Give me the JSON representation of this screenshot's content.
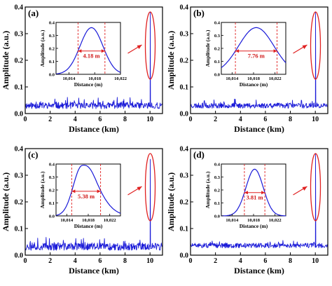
{
  "colors": {
    "trace": "#1a1ad8",
    "marker": "#e02020",
    "axis": "#000000"
  },
  "chart_data": [
    {
      "type": "line",
      "label": "(a)",
      "xlabel": "Distance (km)",
      "ylabel": "Amplitude (a.u.)",
      "xlim": [
        0,
        11
      ],
      "ylim": [
        0,
        0.4
      ],
      "xticks": [
        "0",
        "2",
        "4",
        "6",
        "8",
        "10"
      ],
      "yticks": [
        "0.0",
        "0.1",
        "0.2",
        "0.3",
        "0.4"
      ],
      "noise_level": 0.03,
      "noise_spread": 0.012,
      "peak_position_km": 10.018,
      "peak_amplitude": 0.38,
      "inset": {
        "xlabel": "Distance (m)",
        "ylabel": "Amplitude (a.u.)",
        "xlim": [
          10012,
          10022
        ],
        "ylim": [
          0,
          0.4
        ],
        "xticks": [
          "10,014",
          "10,018",
          "10,022"
        ],
        "yticks": [
          "0.0",
          "0.1",
          "0.2",
          "0.3",
          "0.4"
        ],
        "peak_center_m": 10017.5,
        "peak_amplitude": 0.36,
        "shape": "symmetric",
        "fwhm_m": 4.18,
        "fwhm_label": "4.18 m"
      }
    },
    {
      "type": "line",
      "label": "(b)",
      "xlabel": "Distance (km)",
      "ylabel": "Amplitude (a.u.)",
      "xlim": [
        0,
        11
      ],
      "ylim": [
        0,
        0.4
      ],
      "xticks": [
        "0",
        "2",
        "4",
        "6",
        "8",
        "10"
      ],
      "yticks": [
        "0.0",
        "0.1",
        "0.2",
        "0.3",
        "0.4"
      ],
      "noise_level": 0.03,
      "noise_spread": 0.01,
      "peak_position_km": 10.018,
      "peak_amplitude": 0.38,
      "inset": {
        "xlabel": "Distance (m)",
        "ylabel": "Amplitude (a.u.)",
        "xlim": [
          10012,
          10024
        ],
        "ylim": [
          0,
          0.4
        ],
        "xticks": [
          "10,014",
          "10,018",
          "10,022"
        ],
        "yticks": [
          "0.0",
          "0.1",
          "0.2",
          "0.3",
          "0.4"
        ],
        "peak_center_m": 10018.5,
        "peak_amplitude": 0.36,
        "shape": "symmetric",
        "fwhm_m": 7.76,
        "fwhm_label": "7.76 m"
      }
    },
    {
      "type": "line",
      "label": "(c)",
      "xlabel": "Distance (km)",
      "ylabel": "Amplitude (a.u.)",
      "xlim": [
        0,
        11
      ],
      "ylim": [
        0,
        0.4
      ],
      "xticks": [
        "0",
        "2",
        "4",
        "6",
        "8",
        "10"
      ],
      "yticks": [
        "0.0",
        "0.1",
        "0.2",
        "0.3",
        "0.4"
      ],
      "noise_level": 0.032,
      "noise_spread": 0.014,
      "peak_position_km": 10.018,
      "peak_amplitude": 0.36,
      "inset": {
        "xlabel": "Distance (m)",
        "ylabel": "Amplitude (a.u.)",
        "xlim": [
          10012,
          10024
        ],
        "ylim": [
          0,
          0.4
        ],
        "xticks": [
          "10,014",
          "10,018",
          "10,022"
        ],
        "yticks": [
          "0.0",
          "0.1",
          "0.2",
          "0.3",
          "0.4"
        ],
        "peak_center_m": 10016.8,
        "peak_amplitude": 0.38,
        "shape": "skewed",
        "fwhm_m": 5.38,
        "fwhm_label": "5.38 m"
      }
    },
    {
      "type": "line",
      "label": "(d)",
      "xlabel": "Distance (km)",
      "ylabel": "Amplitude (a.u.)",
      "xlim": [
        0,
        11
      ],
      "ylim": [
        0,
        0.4
      ],
      "xticks": [
        "0",
        "2",
        "4",
        "6",
        "8",
        "10"
      ],
      "yticks": [
        "0.0",
        "0.1",
        "0.2",
        "0.3",
        "0.4"
      ],
      "noise_level": 0.036,
      "noise_spread": 0.009,
      "peak_position_km": 10.018,
      "peak_amplitude": 0.38,
      "inset": {
        "xlabel": "Distance (m)",
        "ylabel": "Amplitude (a.u.)",
        "xlim": [
          10012,
          10024
        ],
        "ylim": [
          0,
          0.4
        ],
        "xticks": [
          "10,014",
          "10,018",
          "10,022"
        ],
        "yticks": [
          "0.0",
          "0.1",
          "0.2",
          "0.3",
          "0.4"
        ],
        "peak_center_m": 10018.2,
        "peak_amplitude": 0.36,
        "shape": "symmetric",
        "fwhm_m": 3.81,
        "fwhm_label": "3.81 m"
      }
    }
  ]
}
